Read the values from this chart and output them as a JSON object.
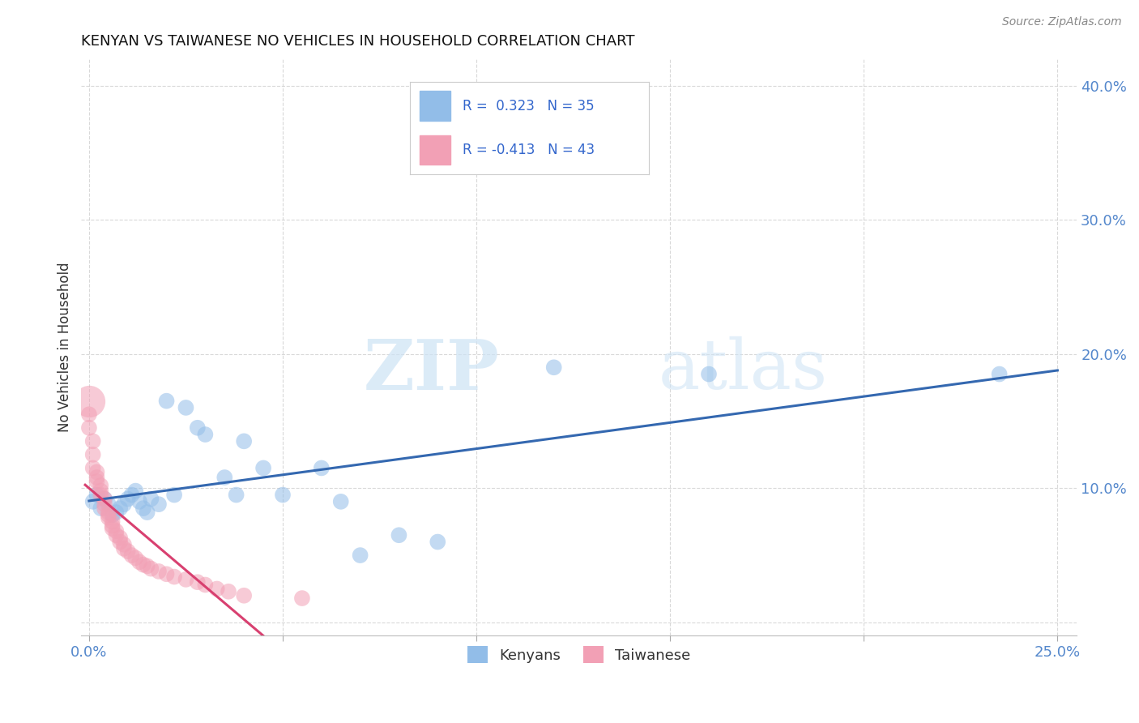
{
  "title": "KENYAN VS TAIWANESE NO VEHICLES IN HOUSEHOLD CORRELATION CHART",
  "source": "Source: ZipAtlas.com",
  "ylabel": "No Vehicles in Household",
  "xlim": [
    -0.002,
    0.255
  ],
  "ylim": [
    -0.01,
    0.42
  ],
  "xticks": [
    0.0,
    0.05,
    0.1,
    0.15,
    0.2,
    0.25
  ],
  "yticks": [
    0.0,
    0.1,
    0.2,
    0.3,
    0.4
  ],
  "kenyan_color": "#92BDE8",
  "taiwanese_color": "#F2A0B5",
  "kenyan_line_color": "#3468B0",
  "taiwanese_line_color": "#D84070",
  "kenyan_R": 0.323,
  "kenyan_N": 35,
  "taiwanese_R": -0.413,
  "taiwanese_N": 43,
  "background_color": "#ffffff",
  "grid_color": "#d0d0d0",
  "watermark_zip": "ZIP",
  "watermark_atlas": "atlas",
  "kenyan_x": [
    0.001,
    0.002,
    0.003,
    0.004,
    0.005,
    0.006,
    0.007,
    0.008,
    0.009,
    0.01,
    0.011,
    0.012,
    0.013,
    0.014,
    0.015,
    0.016,
    0.018,
    0.02,
    0.022,
    0.025,
    0.028,
    0.03,
    0.035,
    0.038,
    0.04,
    0.045,
    0.05,
    0.06,
    0.065,
    0.07,
    0.08,
    0.09,
    0.12,
    0.16,
    0.235
  ],
  "kenyan_y": [
    0.09,
    0.095,
    0.085,
    0.092,
    0.088,
    0.08,
    0.082,
    0.085,
    0.088,
    0.092,
    0.095,
    0.098,
    0.09,
    0.085,
    0.082,
    0.092,
    0.088,
    0.165,
    0.095,
    0.16,
    0.145,
    0.14,
    0.108,
    0.095,
    0.135,
    0.115,
    0.095,
    0.115,
    0.09,
    0.05,
    0.065,
    0.06,
    0.19,
    0.185,
    0.185
  ],
  "kenyan_sizes": [
    200,
    200,
    200,
    200,
    200,
    200,
    200,
    200,
    200,
    200,
    200,
    200,
    200,
    200,
    200,
    200,
    200,
    200,
    200,
    200,
    200,
    200,
    200,
    200,
    200,
    200,
    200,
    200,
    200,
    200,
    200,
    200,
    200,
    200,
    200
  ],
  "taiwanese_x": [
    0.0,
    0.0,
    0.001,
    0.001,
    0.001,
    0.002,
    0.002,
    0.002,
    0.003,
    0.003,
    0.003,
    0.004,
    0.004,
    0.004,
    0.005,
    0.005,
    0.005,
    0.006,
    0.006,
    0.006,
    0.007,
    0.007,
    0.008,
    0.008,
    0.009,
    0.009,
    0.01,
    0.011,
    0.012,
    0.013,
    0.014,
    0.015,
    0.016,
    0.018,
    0.02,
    0.022,
    0.025,
    0.028,
    0.03,
    0.033,
    0.036,
    0.04,
    0.055
  ],
  "taiwanese_y": [
    0.155,
    0.145,
    0.135,
    0.125,
    0.115,
    0.112,
    0.108,
    0.105,
    0.102,
    0.098,
    0.095,
    0.092,
    0.088,
    0.085,
    0.082,
    0.08,
    0.078,
    0.075,
    0.072,
    0.07,
    0.068,
    0.065,
    0.063,
    0.06,
    0.058,
    0.055,
    0.053,
    0.05,
    0.048,
    0.045,
    0.043,
    0.042,
    0.04,
    0.038,
    0.036,
    0.034,
    0.032,
    0.03,
    0.028,
    0.025,
    0.023,
    0.02,
    0.018
  ],
  "taiwanese_sizes": [
    200,
    200,
    200,
    200,
    200,
    200,
    200,
    200,
    200,
    200,
    200,
    200,
    200,
    200,
    200,
    200,
    200,
    200,
    200,
    200,
    200,
    200,
    200,
    200,
    200,
    200,
    200,
    200,
    200,
    200,
    200,
    200,
    200,
    200,
    200,
    200,
    200,
    200,
    200,
    200,
    200,
    200,
    200
  ],
  "taiwanese_large_x": [
    0.0
  ],
  "taiwanese_large_y": [
    0.165
  ],
  "taiwanese_large_sizes": [
    800
  ]
}
